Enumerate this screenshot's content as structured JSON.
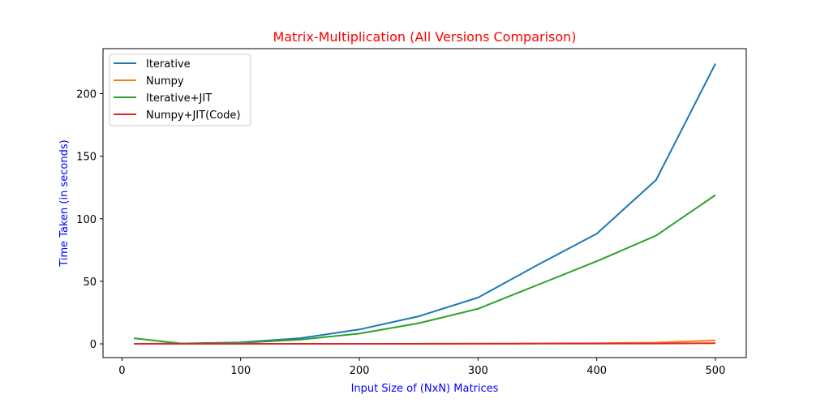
{
  "chart_data": {
    "type": "line",
    "title": "Matrix-Multiplication (All Versions Comparison)",
    "xlabel": "Input Size of (NxN) Matrices",
    "ylabel": "Time Taken (in seconds)",
    "title_color": "#ff0000",
    "label_color": "#0000ff",
    "xlim": [
      -16,
      526
    ],
    "ylim": [
      -11,
      236
    ],
    "x_ticks": [
      0,
      100,
      200,
      300,
      400,
      500
    ],
    "y_ticks": [
      0,
      50,
      100,
      150,
      200
    ],
    "legend_position": "top-left",
    "grid": false,
    "x": [
      10,
      50,
      100,
      150,
      200,
      250,
      300,
      350,
      400,
      450,
      500
    ],
    "series": [
      {
        "name": "Iterative",
        "color": "#1f77b4",
        "values": [
          0.01,
          0.3,
          1.2,
          4.5,
          11.5,
          22,
          37,
          63,
          88,
          131,
          224
        ]
      },
      {
        "name": "Numpy",
        "color": "#ff7f0e",
        "values": [
          0.001,
          0.002,
          0.005,
          0.02,
          0.05,
          0.1,
          0.2,
          0.35,
          0.5,
          1.0,
          2.8
        ]
      },
      {
        "name": "Iterative+JIT",
        "color": "#2ca02c",
        "values": [
          4.5,
          0.3,
          0.8,
          3.3,
          8.2,
          16.5,
          28,
          47,
          66,
          86.5,
          119
        ]
      },
      {
        "name": "Numpy+JIT(Code)",
        "color": "#d62728",
        "values": [
          0.0,
          0.0,
          0.0,
          0.0,
          0.02,
          0.05,
          0.1,
          0.15,
          0.2,
          0.3,
          0.5
        ]
      }
    ]
  }
}
